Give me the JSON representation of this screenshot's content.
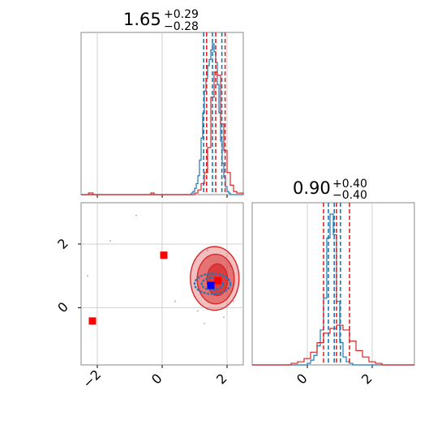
{
  "chart_data": {
    "type": "corner",
    "parameters": [
      {
        "title_value": "1.65",
        "title_plus": "+0.29",
        "title_minus": "−0.28"
      },
      {
        "title_value": "0.90",
        "title_plus": "+0.40",
        "title_minus": "−0.40"
      }
    ],
    "ticks": {
      "x_labels": [
        "−2",
        "0",
        "2"
      ],
      "y_labels": [
        "0",
        "2"
      ],
      "diag2_labels": [
        "0",
        "2"
      ]
    },
    "axis_ranges": {
      "param1": [
        -2.5,
        2.5
      ],
      "param2": [
        -1.8,
        3.3
      ],
      "param2_diag_x": [
        -1.7,
        3.3
      ]
    },
    "grid": true,
    "colors": {
      "blue": "#1f77b4",
      "red": "#d62728",
      "marker_red": "#ff0000",
      "marker_blue": "#0000ff",
      "grid": "#d0d0d0",
      "axes": "#777777"
    },
    "quantile_lines": {
      "param1": {
        "red": [
          1.37,
          1.65,
          1.94
        ],
        "blue": [
          1.28,
          1.55,
          1.84
        ]
      },
      "param2": {
        "red": [
          0.5,
          0.9,
          1.3
        ],
        "blue": [
          0.65,
          0.83,
          1.02
        ]
      }
    },
    "hist1": {
      "blue": {
        "edges": [
          -2.5,
          0.9,
          0.95,
          1.0,
          1.05,
          1.1,
          1.15,
          1.2,
          1.25,
          1.3,
          1.35,
          1.4,
          1.45,
          1.5,
          1.55,
          1.6,
          1.65,
          1.7,
          1.75,
          1.8,
          1.85,
          1.9,
          1.95,
          2.0,
          2.05,
          2.1,
          2.5
        ],
        "counts": [
          0,
          1,
          2,
          4,
          7,
          12,
          22,
          36,
          52,
          66,
          74,
          82,
          86,
          92,
          96,
          91,
          84,
          70,
          52,
          34,
          20,
          11,
          5,
          2,
          1,
          0
        ]
      },
      "red": {
        "edges": [
          -2.5,
          1.0,
          1.1,
          1.2,
          1.3,
          1.4,
          1.5,
          1.6,
          1.7,
          1.8,
          1.9,
          2.0,
          2.1,
          2.2,
          2.3,
          2.5
        ],
        "counts": [
          0,
          1,
          3,
          7,
          14,
          30,
          62,
          78,
          76,
          45,
          28,
          14,
          6,
          2,
          1
        ],
        "outlier_ranges": [
          [
            -2.27,
            -2.13
          ],
          [
            -0.35,
            -0.25
          ]
        ]
      }
    },
    "hist2": {
      "blue": {
        "edges": [
          -1.7,
          0.0,
          0.1,
          0.2,
          0.3,
          0.4,
          0.5,
          0.6,
          0.7,
          0.8,
          0.9,
          1.0,
          1.1,
          1.2,
          1.3,
          1.4,
          3.3
        ],
        "counts": [
          0,
          1,
          3,
          6,
          12,
          22,
          42,
          80,
          95,
          82,
          40,
          14,
          5,
          2,
          1,
          0
        ]
      },
      "red": {
        "edges": [
          -1.7,
          -0.5,
          -0.3,
          -0.1,
          0.1,
          0.3,
          0.5,
          0.7,
          0.9,
          1.1,
          1.3,
          1.5,
          1.7,
          1.9,
          2.1,
          2.3,
          3.3
        ],
        "counts": [
          0,
          1,
          2,
          4,
          8,
          14,
          20,
          23,
          25,
          22,
          15,
          9,
          5,
          2,
          1,
          0
        ]
      }
    },
    "scatter_2d": {
      "red_contours": [
        {
          "cx": 1.62,
          "cy": 0.92,
          "rx": 0.75,
          "ry": 1.0,
          "opacity": 0.3
        },
        {
          "cx": 1.65,
          "cy": 0.9,
          "rx": 0.57,
          "ry": 0.78,
          "opacity": 0.5
        },
        {
          "cx": 1.7,
          "cy": 0.88,
          "rx": 0.32,
          "ry": 0.5,
          "opacity": 0.7
        }
      ],
      "blue_contours": [
        {
          "cx": 1.55,
          "cy": 0.75,
          "rx": 0.55,
          "ry": 0.32
        },
        {
          "cx": 1.55,
          "cy": 0.75,
          "rx": 0.33,
          "ry": 0.19
        }
      ],
      "faint_points": [
        [
          1.3,
          -0.5
        ],
        [
          1.9,
          -0.3
        ],
        [
          1.4,
          1.8
        ],
        [
          1.0,
          1.5
        ],
        [
          2.2,
          0.2
        ],
        [
          -1.6,
          2.1
        ],
        [
          -2.3,
          1.0
        ],
        [
          0.1,
          1.7
        ],
        [
          0.4,
          0.2
        ],
        [
          -0.8,
          2.9
        ],
        [
          2.1,
          1.3
        ],
        [
          1.1,
          -0.1
        ]
      ],
      "markers": [
        {
          "color": "red",
          "x": 0.05,
          "y": 1.65
        },
        {
          "color": "red",
          "x": -2.15,
          "y": -0.42
        },
        {
          "color": "red",
          "x": 1.72,
          "y": 0.85
        },
        {
          "color": "blue",
          "x": 1.5,
          "y": 0.7
        }
      ]
    }
  }
}
